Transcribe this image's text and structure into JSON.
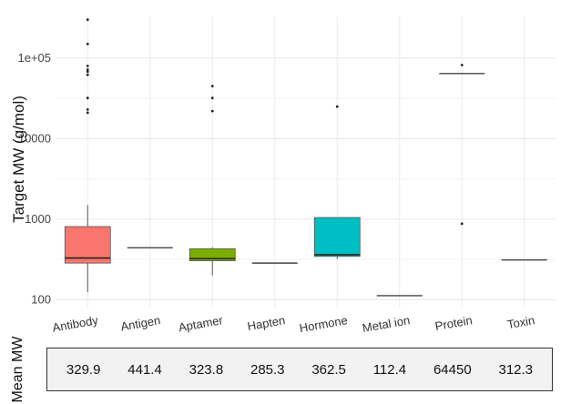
{
  "chart_data": {
    "type": "box",
    "ylabel": "Target MW (g/mol)",
    "yscale": "log10",
    "ylim": [
      80,
      330000
    ],
    "yticks": [
      {
        "value": 100,
        "label": "100"
      },
      {
        "value": 1000,
        "label": "1000"
      },
      {
        "value": 10000,
        "label": "10000"
      },
      {
        "value": 100000,
        "label": "1e+05"
      }
    ],
    "grid": true,
    "categories": [
      "Antibody",
      "Antigen",
      "Aptamer",
      "Hapten",
      "Hormone",
      "Metal ion",
      "Protein",
      "Toxin"
    ],
    "boxes": [
      {
        "category": "Antibody",
        "color": "#F8766D",
        "whisker_low": 125,
        "q1": 285,
        "median": 330,
        "q3": 810,
        "whisker_high": 1500,
        "outliers": [
          300000,
          150000,
          80000,
          72000,
          68000,
          62000,
          32000,
          23000,
          21000
        ]
      },
      {
        "category": "Antigen",
        "color": "#C49A00",
        "whisker_low": 441.4,
        "q1": 441.4,
        "median": 441.4,
        "q3": 441.4,
        "whisker_high": 441.4,
        "outliers": []
      },
      {
        "category": "Aptamer",
        "color": "#7CAE00",
        "whisker_low": 200,
        "q1": 305,
        "median": 323.8,
        "q3": 430,
        "whisker_high": 450,
        "outliers": [
          45000,
          32000,
          22000
        ]
      },
      {
        "category": "Hapten",
        "color": "#00C08B",
        "whisker_low": 285.3,
        "q1": 285.3,
        "median": 285.3,
        "q3": 285.3,
        "whisker_high": 285.3,
        "outliers": []
      },
      {
        "category": "Hormone",
        "color": "#00BFC4",
        "whisker_low": 320,
        "q1": 345,
        "median": 362.5,
        "q3": 1050,
        "whisker_high": 1050,
        "outliers": [
          25000
        ]
      },
      {
        "category": "Metal ion",
        "color": "#00A9FF",
        "whisker_low": 112.4,
        "q1": 112.4,
        "median": 112.4,
        "q3": 112.4,
        "whisker_high": 112.4,
        "outliers": []
      },
      {
        "category": "Protein",
        "color": "#C77CFF",
        "whisker_low": 64450,
        "q1": 64450,
        "median": 64450,
        "q3": 64450,
        "whisker_high": 64450,
        "outliers": [
          82000,
          880
        ]
      },
      {
        "category": "Toxin",
        "color": "#FF61CC",
        "whisker_low": 312.3,
        "q1": 312.3,
        "median": 312.3,
        "q3": 312.3,
        "whisker_high": 312.3,
        "outliers": []
      }
    ]
  },
  "mean_panel": {
    "title": "Mean MW",
    "values": [
      "329.9",
      "441.4",
      "323.8",
      "285.3",
      "362.5",
      "112.4",
      "64450",
      "312.3"
    ]
  }
}
